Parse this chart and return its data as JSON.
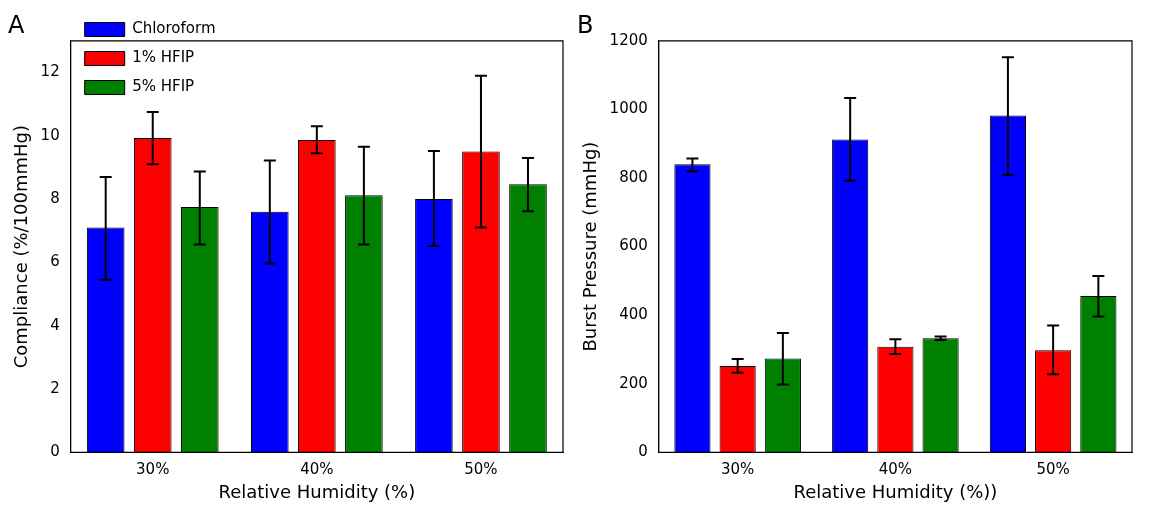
{
  "chart_data": [
    {
      "type": "bar",
      "title": "A",
      "xlabel": "Relative Humidity (%)",
      "ylabel": "Compliance (%/100mmHg)",
      "categories": [
        "30%",
        "40%",
        "50%"
      ],
      "ylim": [
        0,
        13
      ],
      "yticks": [
        0,
        2,
        4,
        6,
        8,
        10,
        12
      ],
      "legend": "top left",
      "series": [
        {
          "name": "Chloroform",
          "color": "#0000ff",
          "values": [
            7.1,
            7.6,
            8.0
          ],
          "errors": [
            [
              5.45,
              8.7
            ],
            [
              5.97,
              9.22
            ],
            [
              6.52,
              9.52
            ]
          ]
        },
        {
          "name": "1% HFIP",
          "color": "#ff0000",
          "values": [
            9.93,
            9.87,
            9.5
          ],
          "errors": [
            [
              9.1,
              10.75
            ],
            [
              9.45,
              10.3
            ],
            [
              7.1,
              11.9
            ]
          ]
        },
        {
          "name": "5% HFIP",
          "color": "#008000",
          "values": [
            7.75,
            8.12,
            8.47
          ],
          "errors": [
            [
              6.57,
              8.87
            ],
            [
              6.57,
              9.65
            ],
            [
              7.62,
              9.3
            ]
          ]
        }
      ]
    },
    {
      "type": "bar",
      "title": "B",
      "xlabel": "Relative Humidity (%))",
      "ylabel": "Burst Pressure (mmHg)",
      "categories": [
        "30%",
        "40%",
        "50%"
      ],
      "ylim": [
        0,
        1200
      ],
      "yticks": [
        0,
        200,
        400,
        600,
        800,
        1000,
        1200
      ],
      "series": [
        {
          "color": "#0000ff",
          "values": [
            840,
            912,
            982
          ],
          "errors": [
            [
              820,
              857
            ],
            [
              792,
              1033
            ],
            [
              808,
              1152
            ]
          ]
        },
        {
          "color": "#ff0000",
          "values": [
            252,
            308,
            298
          ],
          "errors": [
            [
              232,
              272
            ],
            [
              287,
              330
            ],
            [
              228,
              370
            ]
          ]
        },
        {
          "color": "#008000",
          "values": [
            274,
            333,
            456
          ],
          "errors": [
            [
              198,
              348
            ],
            [
              328,
              338
            ],
            [
              396,
              514
            ]
          ]
        }
      ]
    }
  ]
}
